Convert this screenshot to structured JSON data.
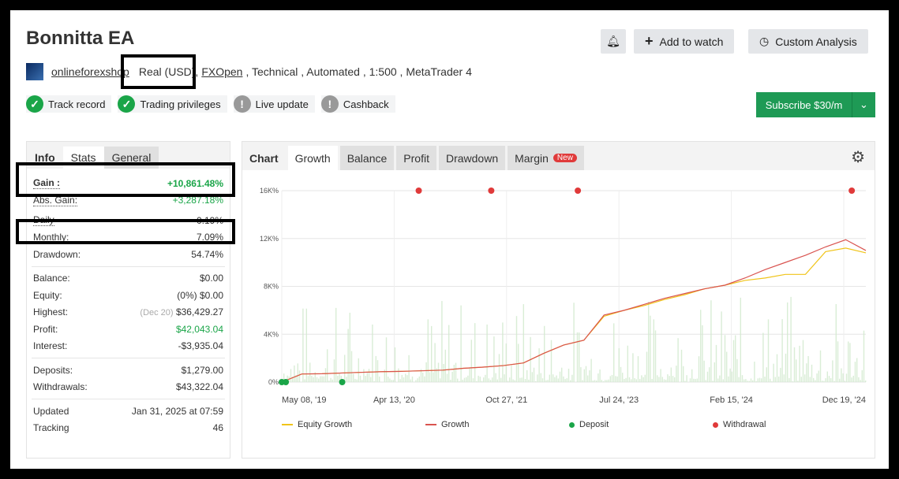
{
  "header": {
    "title": "Bonnitta EA",
    "alert_icon": "bell-icon",
    "add_to_watch": "Add to watch",
    "custom_analysis": "Custom Analysis"
  },
  "meta": {
    "user": "onlineforexshop",
    "account": "Real (USD),",
    "broker": "FXOpen",
    "rest": ", Technical , Automated , 1:500 , MetaTrader 4"
  },
  "badges": [
    {
      "label": "Track record",
      "status": "check"
    },
    {
      "label": "Trading privileges",
      "status": "check"
    },
    {
      "label": "Live update",
      "status": "warning"
    },
    {
      "label": "Cashback",
      "status": "warning"
    }
  ],
  "subscribe": {
    "label": "Subscribe $30/m"
  },
  "info_tabs": [
    "Info",
    "Stats",
    "General"
  ],
  "stats": {
    "gain": {
      "label": "Gain :",
      "value": "+10,861.48%"
    },
    "abs_gain": {
      "label": "Abs. Gain:",
      "value": "+3,287.18%"
    },
    "daily": {
      "label": "Daily",
      "value": "0.19%"
    },
    "monthly": {
      "label": "Monthly:",
      "value": "7.09%"
    },
    "drawdown": {
      "label": "Drawdown:",
      "value": "54.74%"
    },
    "balance": {
      "label": "Balance:",
      "value": "$0.00"
    },
    "equity": {
      "label": "Equity:",
      "value": "(0%) $0.00"
    },
    "highest": {
      "label": "Highest:",
      "note": "(Dec 20)",
      "value": "$36,429.27"
    },
    "profit": {
      "label": "Profit:",
      "value": "$42,043.04"
    },
    "interest": {
      "label": "Interest:",
      "value": "-$3,935.04"
    },
    "deposits": {
      "label": "Deposits:",
      "value": "$1,279.00"
    },
    "withdrawals": {
      "label": "Withdrawals:",
      "value": "$43,322.04"
    },
    "updated": {
      "label": "Updated",
      "value": "Jan 31, 2025 at 07:59"
    },
    "tracking": {
      "label": "Tracking",
      "value": "46"
    }
  },
  "chart_tabs": {
    "label": "Chart",
    "tabs": [
      "Growth",
      "Balance",
      "Profit",
      "Drawdown",
      "Margin"
    ],
    "new_badge": "New",
    "active": "Growth",
    "settings_icon": "sliders-icon"
  },
  "chart_data": {
    "type": "line",
    "x_ticks": [
      "May 08, '19",
      "Apr 13, '20",
      "Oct 27, '21",
      "Jul 24, '23",
      "Feb 15, '24",
      "Dec 19, '24"
    ],
    "y_ticks": [
      "0%",
      "4K%",
      "8K%",
      "12K%",
      "16K%"
    ],
    "ylim": [
      0,
      16000
    ],
    "grid": true,
    "legend_position": "bottom",
    "series": [
      {
        "name": "Equity Growth",
        "color": "#f0c419",
        "values": [
          0,
          680,
          700,
          760,
          820,
          870,
          900,
          950,
          1000,
          1150,
          1250,
          1380,
          1600,
          2400,
          3100,
          3500,
          5500,
          6000,
          6400,
          6900,
          7300,
          7800,
          8100,
          8500,
          8700,
          9000,
          9000,
          10900,
          11200,
          10800
        ]
      },
      {
        "name": "Growth",
        "color": "#d9534f",
        "values": [
          0,
          680,
          700,
          760,
          820,
          870,
          900,
          950,
          1000,
          1150,
          1250,
          1380,
          1600,
          2400,
          3100,
          3500,
          5600,
          6000,
          6500,
          7000,
          7400,
          7800,
          8100,
          8700,
          9400,
          10000,
          10600,
          11300,
          11900,
          11000
        ]
      }
    ],
    "markers": [
      {
        "name": "Deposit",
        "color": "#1aa548",
        "at_sample": [
          0,
          0.2,
          3
        ]
      },
      {
        "name": "Withdrawal",
        "color": "#e03a3a",
        "at_sample": [
          6.8,
          10.4,
          14.7,
          28.3
        ]
      }
    ]
  }
}
